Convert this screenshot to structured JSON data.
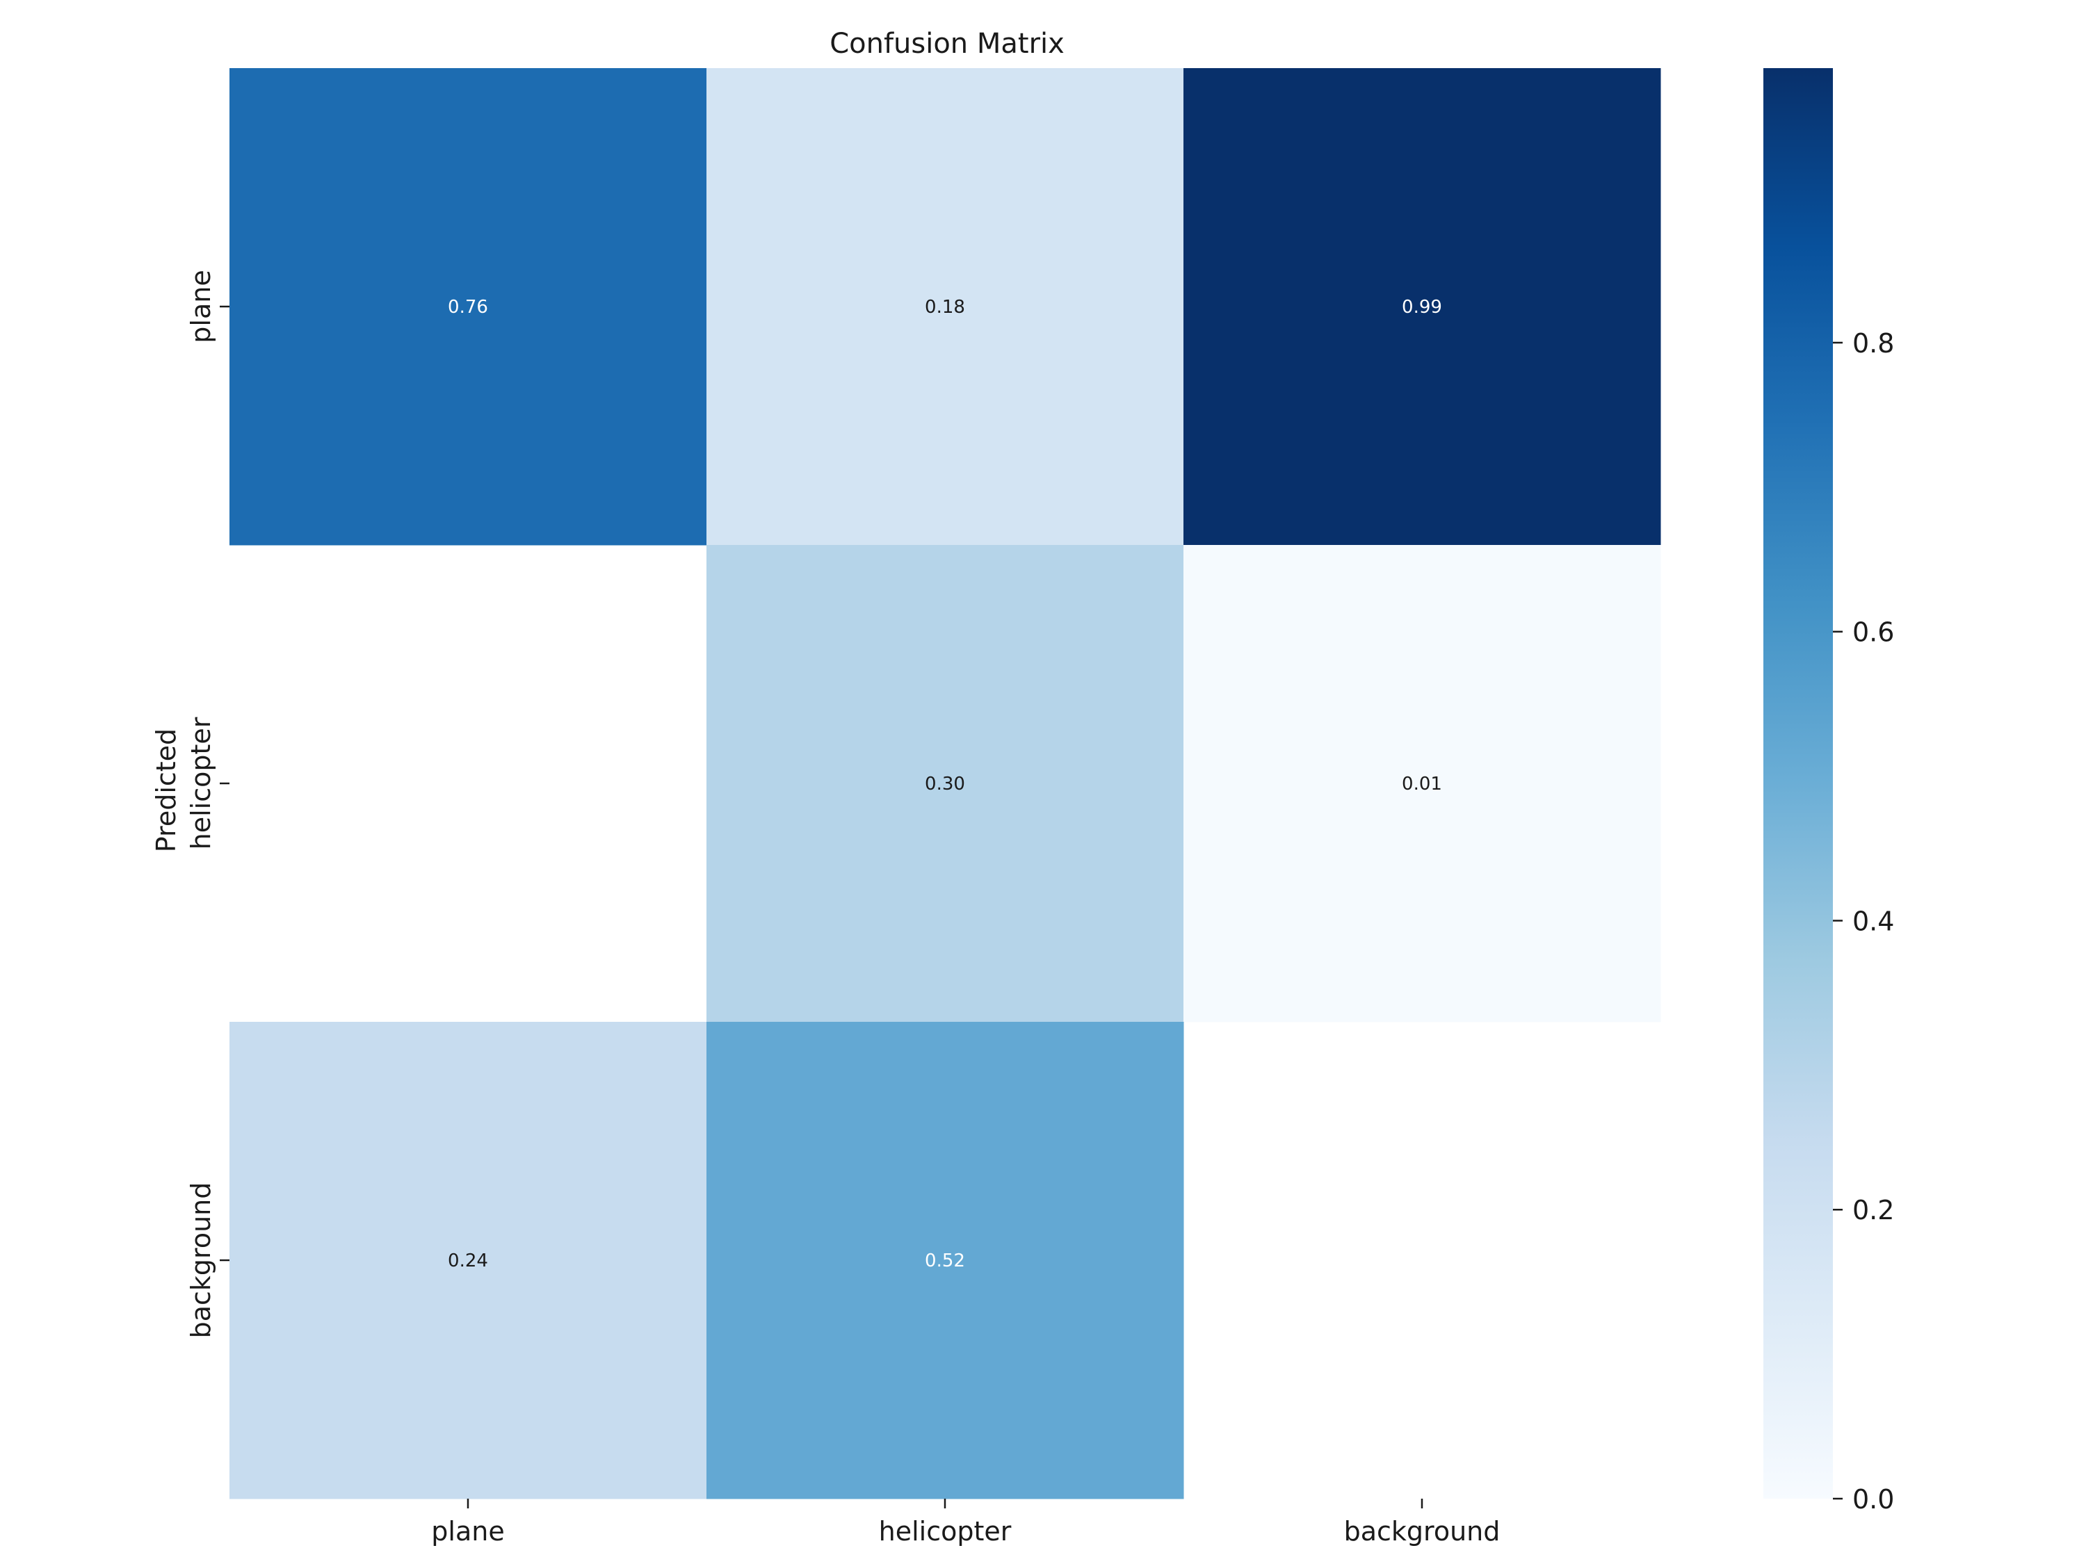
{
  "chart_data": {
    "type": "heatmap",
    "title": "Confusion Matrix",
    "xlabel": "",
    "ylabel": "Predicted",
    "x_categories": [
      "plane",
      "helicopter",
      "background"
    ],
    "y_categories": [
      "plane",
      "helicopter",
      "background"
    ],
    "values": [
      [
        0.76,
        0.18,
        0.99
      ],
      [
        null,
        0.3,
        0.01
      ],
      [
        0.24,
        0.52,
        null
      ]
    ],
    "cell_labels": [
      [
        "0.76",
        "0.18",
        "0.99"
      ],
      [
        "",
        "0.30",
        "0.01"
      ],
      [
        "0.24",
        "0.52",
        ""
      ]
    ],
    "colormap": "Blues",
    "vmin": 0.0,
    "vmax": 0.99,
    "colorbar_ticks": [
      0.0,
      0.2,
      0.4,
      0.6,
      0.8
    ],
    "colorbar_tick_labels": [
      "0.0",
      "0.2",
      "0.4",
      "0.6",
      "0.8"
    ],
    "colorbar_placement": "right"
  }
}
